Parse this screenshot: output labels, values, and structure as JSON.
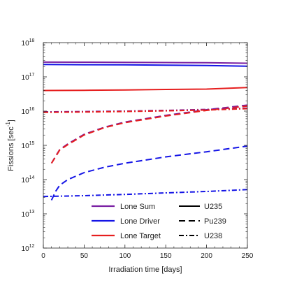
{
  "chart_data": {
    "type": "line",
    "title": "",
    "xlabel": "Irradiation time [days]",
    "ylabel_main": "Fissions [sec",
    "ylabel_sup": "-1",
    "ylabel_tail": "]",
    "xscale": "linear",
    "yscale": "log",
    "xlim": [
      0,
      250
    ],
    "ylim": [
      1000000000000.0,
      1e+18
    ],
    "xticks": [
      0,
      50,
      100,
      150,
      200,
      250
    ],
    "xtick_labels": [
      "0",
      "50",
      "100",
      "150",
      "200",
      "250"
    ],
    "yticks": [
      1000000000000.0,
      10000000000000.0,
      100000000000000.0,
      1000000000000000.0,
      1e+16,
      1e+17,
      1e+18
    ],
    "ytick_labels": [
      {
        "base": "10",
        "exp": "12"
      },
      {
        "base": "10",
        "exp": "13"
      },
      {
        "base": "10",
        "exp": "14"
      },
      {
        "base": "10",
        "exp": "15"
      },
      {
        "base": "10",
        "exp": "16"
      },
      {
        "base": "10",
        "exp": "17"
      },
      {
        "base": "10",
        "exp": "18"
      }
    ],
    "grid": false,
    "legend_position": "lower-center",
    "legend_colors": [
      {
        "label": "Lone Sum",
        "color": "#7a1fa2"
      },
      {
        "label": "Lone Driver",
        "color": "#1414e6"
      },
      {
        "label": "Lone Target",
        "color": "#e61e1e"
      }
    ],
    "legend_styles": [
      {
        "label": "U235",
        "dash": "solid"
      },
      {
        "label": "Pu239",
        "dash": "dashed"
      },
      {
        "label": "U238",
        "dash": "dashdot"
      }
    ],
    "series": [
      {
        "group": "Lone Sum",
        "isotope": "U235",
        "color": "#7a1fa2",
        "dash": "solid",
        "x": [
          0,
          50,
          100,
          150,
          200,
          250
        ],
        "y": [
          2.7e+17,
          2.68e+17,
          2.65e+17,
          2.62e+17,
          2.58e+17,
          2.5e+17
        ]
      },
      {
        "group": "Lone Driver",
        "isotope": "U235",
        "color": "#1414e6",
        "dash": "solid",
        "x": [
          0,
          50,
          100,
          150,
          200,
          250
        ],
        "y": [
          2.3e+17,
          2.27e+17,
          2.24e+17,
          2.2e+17,
          2.15e+17,
          2.05e+17
        ]
      },
      {
        "group": "Lone Target",
        "isotope": "U235",
        "color": "#e61e1e",
        "dash": "solid",
        "x": [
          0,
          50,
          100,
          150,
          200,
          250
        ],
        "y": [
          4e+16,
          4.05e+16,
          4.15e+16,
          4.3e+16,
          4.4e+16,
          4.9e+16
        ]
      },
      {
        "group": "Lone Sum",
        "isotope": "Pu239",
        "color": "#7a1fa2",
        "dash": "dashed",
        "x": [
          10,
          15,
          20,
          30,
          50,
          75,
          100,
          150,
          200,
          250
        ],
        "y": [
          300000000000000.0,
          480000000000000.0,
          750000000000000.0,
          1100000000000000.0,
          2100000000000000.0,
          3400000000000000.0,
          4800000000000000.0,
          7500000000000000.0,
          1.1e+16,
          1.5e+16
        ]
      },
      {
        "group": "Lone Target",
        "isotope": "Pu239",
        "color": "#e61e1e",
        "dash": "dashed",
        "x": [
          10,
          15,
          20,
          30,
          50,
          75,
          100,
          150,
          200,
          250
        ],
        "y": [
          300000000000000.0,
          460000000000000.0,
          730000000000000.0,
          1050000000000000.0,
          2000000000000000.0,
          3300000000000000.0,
          4600000000000000.0,
          7200000000000000.0,
          1.05e+16,
          1.4e+16
        ]
      },
      {
        "group": "Lone Driver",
        "isotope": "Pu239",
        "color": "#1414e6",
        "dash": "dashed",
        "x": [
          10,
          15,
          20,
          30,
          50,
          75,
          100,
          150,
          200,
          250
        ],
        "y": [
          25000000000000.0,
          45000000000000.0,
          68000000000000.0,
          100000000000000.0,
          160000000000000.0,
          230000000000000.0,
          300000000000000.0,
          460000000000000.0,
          650000000000000.0,
          950000000000000.0
        ]
      },
      {
        "group": "Lone Sum",
        "isotope": "U238",
        "color": "#7a1fa2",
        "dash": "dashdot",
        "x": [
          0,
          50,
          100,
          150,
          200,
          250
        ],
        "y": [
          9500000000000000.0,
          9700000000000000.0,
          1e+16,
          1.05e+16,
          1.12e+16,
          1.22e+16
        ]
      },
      {
        "group": "Lone Target",
        "isotope": "U238",
        "color": "#e61e1e",
        "dash": "dashdot",
        "x": [
          0,
          50,
          100,
          150,
          200,
          250
        ],
        "y": [
          9200000000000000.0,
          9400000000000000.0,
          9700000000000000.0,
          1.02e+16,
          1.08e+16,
          1.18e+16
        ]
      },
      {
        "group": "Lone Driver",
        "isotope": "U238",
        "color": "#1414e6",
        "dash": "dashdot",
        "x": [
          0,
          50,
          100,
          150,
          200,
          250
        ],
        "y": [
          32000000000000.0,
          34000000000000.0,
          37000000000000.0,
          41000000000000.0,
          45000000000000.0,
          51000000000000.0
        ]
      }
    ]
  }
}
